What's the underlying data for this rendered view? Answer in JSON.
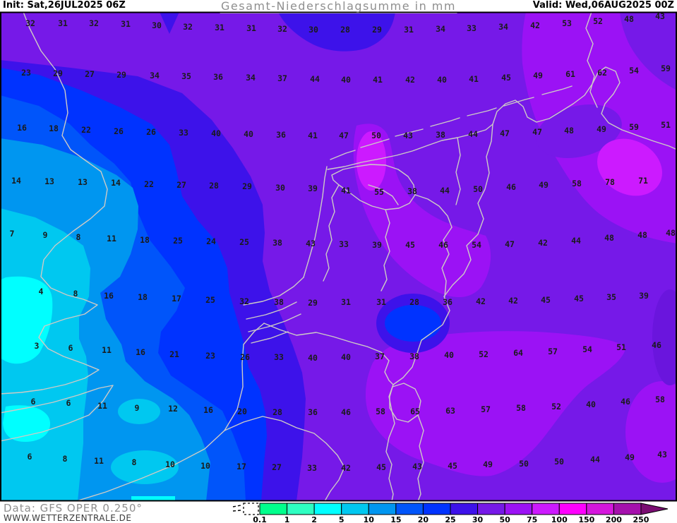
{
  "header": {
    "init": "Init: Sat,26JUL2025 06Z",
    "title": "Gesamt-Niederschlagsumme in mm",
    "valid": "Valid: Wed,06AUG2025 00Z"
  },
  "footer": {
    "data_source": "Data: GFS OPER 0.250°",
    "website": "WWW.WETTERZENTRALE.DE"
  },
  "legend": {
    "ticks": [
      "0.1",
      "1",
      "2",
      "5",
      "10",
      "15",
      "20",
      "25",
      "30",
      "50",
      "75",
      "100",
      "150",
      "200",
      "250"
    ],
    "bin_colors": [
      "#00ff8c",
      "#2effc2",
      "#00ffff",
      "#00c8f0",
      "#0096f0",
      "#0055fa",
      "#0033ff",
      "#3d12ea",
      "#7619e8",
      "#9b12f5",
      "#cc1aff",
      "#ff00ff",
      "#d517dd",
      "#a511ad"
    ],
    "overflow_arrow_color": "#7a0d72",
    "underflow_style": "dashed-empty-box"
  },
  "map": {
    "unit": "mm",
    "value_color": "#1a1a1a",
    "coast_color": "#cdcac6",
    "frame_color": "#000000",
    "base_bin_color": "#7619e8",
    "grid_rows": [
      [
        [
          43,
          33,
          32
        ],
        [
          89,
          33,
          31
        ],
        [
          133,
          33,
          32
        ],
        [
          178,
          34,
          31
        ],
        [
          222,
          36,
          30
        ],
        [
          266,
          38,
          32
        ],
        [
          311,
          39,
          31
        ],
        [
          356,
          40,
          31
        ],
        [
          400,
          41,
          32
        ],
        [
          444,
          42,
          30
        ],
        [
          489,
          42,
          28
        ],
        [
          534,
          42,
          29
        ],
        [
          579,
          42,
          31
        ],
        [
          624,
          41,
          34
        ],
        [
          668,
          40,
          33
        ],
        [
          713,
          38,
          34
        ],
        [
          758,
          36,
          42
        ],
        [
          803,
          33,
          53
        ],
        [
          847,
          30,
          52
        ],
        [
          891,
          27,
          48
        ],
        [
          935,
          23,
          43
        ]
      ],
      [
        [
          37,
          103,
          23
        ],
        [
          82,
          104,
          29
        ],
        [
          127,
          105,
          27
        ],
        [
          172,
          106,
          29
        ],
        [
          219,
          107,
          34
        ],
        [
          264,
          108,
          35
        ],
        [
          309,
          109,
          36
        ],
        [
          355,
          110,
          34
        ],
        [
          400,
          111,
          37
        ],
        [
          446,
          112,
          44
        ],
        [
          490,
          113,
          40
        ],
        [
          535,
          113,
          41
        ],
        [
          581,
          113,
          42
        ],
        [
          626,
          113,
          40
        ],
        [
          671,
          112,
          41
        ],
        [
          717,
          110,
          45
        ],
        [
          762,
          107,
          49
        ],
        [
          808,
          105,
          61
        ],
        [
          853,
          103,
          62
        ],
        [
          898,
          100,
          54
        ],
        [
          943,
          97,
          59
        ]
      ],
      [
        [
          31,
          181,
          16
        ],
        [
          76,
          182,
          18
        ],
        [
          122,
          184,
          22
        ],
        [
          168,
          186,
          26
        ],
        [
          214,
          187,
          26
        ],
        [
          260,
          188,
          33
        ],
        [
          306,
          189,
          40
        ],
        [
          352,
          190,
          40
        ],
        [
          398,
          191,
          36
        ],
        [
          443,
          192,
          41
        ],
        [
          487,
          192,
          47
        ],
        [
          533,
          192,
          50
        ],
        [
          578,
          192,
          43
        ],
        [
          624,
          191,
          38
        ],
        [
          670,
          190,
          44
        ],
        [
          715,
          189,
          47
        ],
        [
          761,
          187,
          47
        ],
        [
          806,
          185,
          48
        ],
        [
          852,
          183,
          49
        ],
        [
          898,
          180,
          59
        ],
        [
          943,
          177,
          51
        ]
      ],
      [
        [
          23,
          256,
          14
        ],
        [
          70,
          257,
          13
        ],
        [
          117,
          258,
          13
        ],
        [
          164,
          259,
          14
        ],
        [
          211,
          261,
          22
        ],
        [
          257,
          262,
          27
        ],
        [
          303,
          263,
          28
        ],
        [
          350,
          264,
          29
        ],
        [
          397,
          266,
          30
        ],
        [
          443,
          267,
          39
        ],
        [
          490,
          270,
          41
        ],
        [
          537,
          272,
          55
        ],
        [
          584,
          271,
          38
        ],
        [
          630,
          270,
          44
        ],
        [
          677,
          268,
          50
        ],
        [
          724,
          265,
          46
        ],
        [
          770,
          262,
          49
        ],
        [
          817,
          260,
          58
        ],
        [
          864,
          258,
          78
        ],
        [
          911,
          256,
          71
        ]
      ],
      [
        [
          17,
          331,
          7
        ],
        [
          64,
          333,
          9
        ],
        [
          111,
          336,
          8
        ],
        [
          158,
          338,
          11
        ],
        [
          205,
          340,
          18
        ],
        [
          252,
          341,
          25
        ],
        [
          299,
          342,
          24
        ],
        [
          346,
          343,
          25
        ],
        [
          393,
          344,
          38
        ],
        [
          440,
          345,
          43
        ],
        [
          487,
          346,
          33
        ],
        [
          534,
          347,
          39
        ],
        [
          581,
          347,
          45
        ],
        [
          628,
          347,
          46
        ],
        [
          675,
          347,
          54
        ],
        [
          722,
          346,
          47
        ],
        [
          769,
          344,
          42
        ],
        [
          816,
          341,
          44
        ],
        [
          863,
          337,
          48
        ],
        [
          910,
          333,
          48
        ],
        [
          950,
          330,
          48
        ]
      ],
      [
        [
          58,
          413,
          4
        ],
        [
          107,
          416,
          8
        ],
        [
          154,
          419,
          16
        ],
        [
          202,
          421,
          18
        ],
        [
          250,
          423,
          17
        ],
        [
          298,
          425,
          25
        ],
        [
          346,
          427,
          32
        ],
        [
          395,
          428,
          38
        ],
        [
          443,
          429,
          29
        ],
        [
          490,
          428,
          31
        ],
        [
          540,
          428,
          31
        ],
        [
          587,
          428,
          28
        ],
        [
          634,
          428,
          36
        ],
        [
          681,
          427,
          42
        ],
        [
          727,
          426,
          42
        ],
        [
          773,
          425,
          45
        ],
        [
          820,
          423,
          45
        ],
        [
          866,
          421,
          35
        ],
        [
          912,
          419,
          39
        ]
      ],
      [
        [
          52,
          490,
          3
        ],
        [
          100,
          493,
          6
        ],
        [
          151,
          496,
          11
        ],
        [
          199,
          499,
          16
        ],
        [
          247,
          502,
          21
        ],
        [
          298,
          504,
          23
        ],
        [
          347,
          506,
          26
        ],
        [
          395,
          506,
          33
        ],
        [
          443,
          507,
          40
        ],
        [
          490,
          506,
          40
        ],
        [
          538,
          505,
          37
        ],
        [
          587,
          505,
          38
        ],
        [
          636,
          503,
          40
        ],
        [
          685,
          502,
          52
        ],
        [
          734,
          500,
          64
        ],
        [
          783,
          498,
          57
        ],
        [
          832,
          495,
          54
        ],
        [
          880,
          492,
          51
        ],
        [
          930,
          489,
          46
        ]
      ],
      [
        [
          47,
          569,
          6
        ],
        [
          97,
          571,
          6
        ],
        [
          145,
          575,
          11
        ],
        [
          194,
          578,
          9
        ],
        [
          245,
          579,
          12
        ],
        [
          295,
          581,
          16
        ],
        [
          343,
          583,
          20
        ],
        [
          393,
          584,
          28
        ],
        [
          443,
          584,
          36
        ],
        [
          490,
          584,
          46
        ],
        [
          539,
          583,
          58
        ],
        [
          588,
          583,
          65
        ],
        [
          638,
          582,
          63
        ],
        [
          688,
          580,
          57
        ],
        [
          738,
          578,
          58
        ],
        [
          788,
          576,
          52
        ],
        [
          837,
          573,
          40
        ],
        [
          886,
          569,
          46
        ],
        [
          935,
          566,
          58
        ]
      ],
      [
        [
          42,
          647,
          6
        ],
        [
          92,
          650,
          8
        ],
        [
          140,
          653,
          11
        ],
        [
          190,
          655,
          8
        ],
        [
          241,
          658,
          10
        ],
        [
          291,
          660,
          10
        ],
        [
          342,
          661,
          17
        ],
        [
          392,
          662,
          27
        ],
        [
          442,
          663,
          33
        ],
        [
          490,
          663,
          42
        ],
        [
          540,
          662,
          45
        ],
        [
          591,
          661,
          43
        ],
        [
          641,
          660,
          45
        ],
        [
          691,
          658,
          49
        ],
        [
          742,
          657,
          50
        ],
        [
          792,
          654,
          50
        ],
        [
          843,
          651,
          44
        ],
        [
          892,
          648,
          49
        ],
        [
          938,
          644,
          43
        ]
      ]
    ]
  }
}
